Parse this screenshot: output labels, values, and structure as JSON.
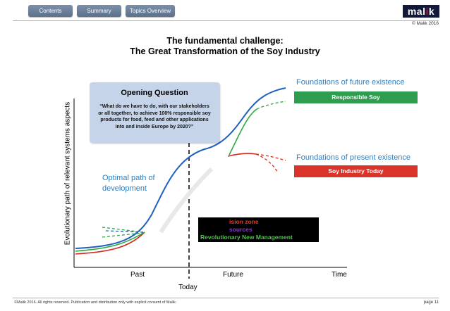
{
  "nav": {
    "tabs": [
      {
        "label": "Contents"
      },
      {
        "label": "Summary"
      },
      {
        "label": "Topics Overview"
      }
    ]
  },
  "logo": {
    "pre": "mal",
    "mid": "i",
    "post": "k"
  },
  "copyright_top": "© Malik 2016",
  "title": {
    "line1": "The fundamental challenge:",
    "line2": "The Great Transformation of the Soy Industry"
  },
  "opening_question": {
    "heading": "Opening Question",
    "text": "“What do we have to do, with our stakeholders or all together, to achieve 100% responsible soy products for food, feed and other applications into and inside Europe by 2020?”"
  },
  "optimal_path": {
    "line1": "Optimal path of",
    "line2": "development"
  },
  "future_existence": {
    "label": "Foundations of future existence",
    "badge": "Responsible Soy"
  },
  "present_existence": {
    "label": "Foundations of present existence",
    "badge": "Soy Industry Today"
  },
  "axis": {
    "y_label": "Evolutionary path of relevant systems aspects",
    "past": "Past",
    "future": "Future",
    "time": "Time",
    "today": "Today"
  },
  "decision_box": {
    "line1": "ision zone",
    "line2": "sources",
    "line3": "Revolutionary New Management"
  },
  "colors": {
    "blue_curve": "#2060c0",
    "green_curve": "#27a83a",
    "red_curve": "#d42a1e",
    "badge_green": "#2e9d4f",
    "badge_red": "#d9332a",
    "tab_blue": "#6b7f9b"
  },
  "footer": {
    "text": "©Malik 2016. All rights reserved. Publication and distribution only with explicit consent of Malik.",
    "page": "page 11"
  }
}
